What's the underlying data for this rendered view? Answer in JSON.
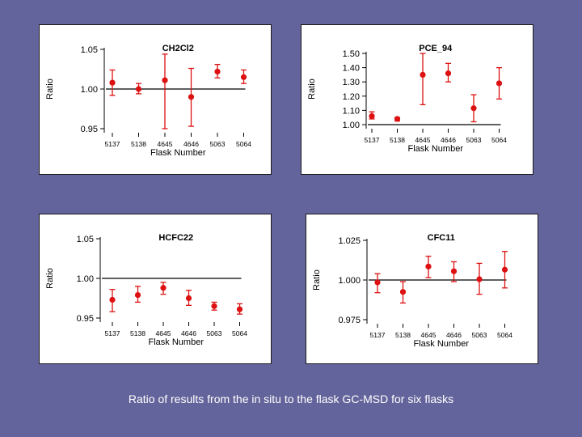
{
  "caption": "Ratio of results from the in situ to the flask GC-MSD for six flasks",
  "colors": {
    "background": "#64649c",
    "marker": "#dd1111",
    "axis": "#000000"
  },
  "chart_data": [
    {
      "type": "scatter",
      "title": "CH2Cl2",
      "xlabel": "Flask Number",
      "ylabel": "Ratio",
      "categories": [
        "5137",
        "5138",
        "4645",
        "4646",
        "5063",
        "5064"
      ],
      "values": [
        1.008,
        1.0,
        1.011,
        0.99,
        1.022,
        1.015
      ],
      "error_low": [
        0.992,
        0.994,
        0.95,
        0.953,
        1.014,
        1.007
      ],
      "error_high": [
        1.024,
        1.007,
        1.044,
        1.026,
        1.031,
        1.024
      ],
      "yticks": [
        0.95,
        1.0,
        1.05
      ],
      "ytick_labels": [
        "0.95",
        "1.00",
        "1.05"
      ],
      "ylim": [
        0.95,
        1.05
      ],
      "reference_line": 1.0,
      "grid": false
    },
    {
      "type": "scatter",
      "title": "PCE_94",
      "xlabel": "Flask Number",
      "ylabel": "Ratio",
      "categories": [
        "5137",
        "5138",
        "4645",
        "4646",
        "5063",
        "5064"
      ],
      "values": [
        1.06,
        1.04,
        1.35,
        1.36,
        1.115,
        1.29
      ],
      "error_low": [
        1.04,
        1.025,
        1.14,
        1.3,
        1.02,
        1.18
      ],
      "error_high": [
        1.09,
        1.05,
        1.5,
        1.43,
        1.21,
        1.4
      ],
      "yticks": [
        1.0,
        1.1,
        1.2,
        1.3,
        1.4,
        1.5
      ],
      "ytick_labels": [
        "1.00",
        "1.10",
        "1.20",
        "1.30",
        "1.40",
        "1.50"
      ],
      "ylim": [
        1.0,
        1.5
      ],
      "reference_line": 1.0,
      "grid": false
    },
    {
      "type": "scatter",
      "title": "HCFC22",
      "xlabel": "Flask Number",
      "ylabel": "Ratio",
      "categories": [
        "5137",
        "5138",
        "4645",
        "4646",
        "5063",
        "5064"
      ],
      "values": [
        0.973,
        0.979,
        0.988,
        0.975,
        0.965,
        0.961
      ],
      "error_low": [
        0.958,
        0.97,
        0.98,
        0.966,
        0.96,
        0.955
      ],
      "error_high": [
        0.986,
        0.99,
        0.995,
        0.985,
        0.97,
        0.968
      ],
      "yticks": [
        0.95,
        1.0,
        1.05
      ],
      "ytick_labels": [
        "0.95",
        "1.00",
        "1.05"
      ],
      "ylim": [
        0.95,
        1.05
      ],
      "reference_line": 1.0,
      "grid": false
    },
    {
      "type": "scatter",
      "title": "CFC11",
      "xlabel": "Flask Number",
      "ylabel": "Ratio",
      "categories": [
        "5137",
        "5138",
        "4645",
        "4646",
        "5063",
        "5064"
      ],
      "values": [
        0.9985,
        0.9925,
        1.0085,
        1.0055,
        1.0005,
        1.0065
      ],
      "error_low": [
        0.992,
        0.9855,
        1.0015,
        0.999,
        0.991,
        0.995
      ],
      "error_high": [
        1.004,
        0.999,
        1.015,
        1.0115,
        1.0105,
        1.018
      ],
      "yticks": [
        0.975,
        1.0,
        1.025
      ],
      "ytick_labels": [
        "0.975",
        "1.000",
        "1.025"
      ],
      "ylim": [
        0.975,
        1.025
      ],
      "reference_line": 1.0,
      "grid": false
    }
  ]
}
